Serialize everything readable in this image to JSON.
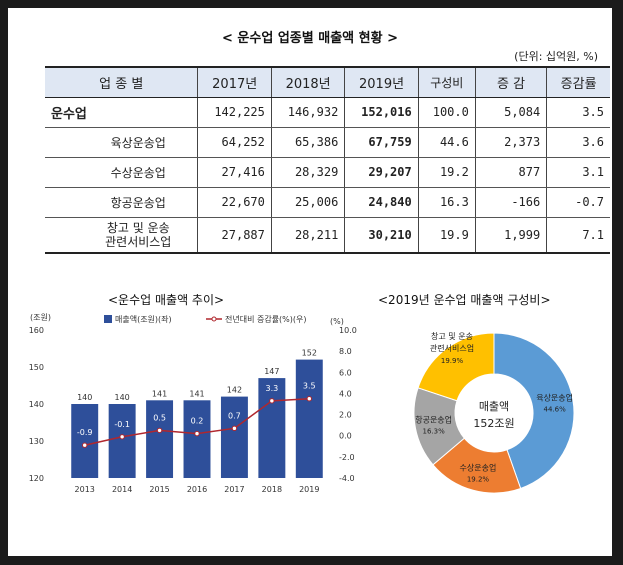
{
  "title": "< 운수업 업종별 매출액 현황 >",
  "unit": "(단위: 십억원, %)",
  "table": {
    "headers": [
      "업 종 별",
      "2017년",
      "2018년",
      "2019년",
      "구성비",
      "증 감",
      "증감률"
    ],
    "rows": [
      {
        "name": "운수업",
        "v2017": "142,225",
        "v2018": "146,932",
        "v2019": "152,016",
        "share": "100.0",
        "change": "5,084",
        "rate": "3.5"
      },
      {
        "name": "육상운송업",
        "v2017": "64,252",
        "v2018": "65,386",
        "v2019": "67,759",
        "share": "44.6",
        "change": "2,373",
        "rate": "3.6"
      },
      {
        "name": "수상운송업",
        "v2017": "27,416",
        "v2018": "28,329",
        "v2019": "29,207",
        "share": "19.2",
        "change": "877",
        "rate": "3.1"
      },
      {
        "name": "항공운송업",
        "v2017": "22,670",
        "v2018": "25,006",
        "v2019": "24,840",
        "share": "16.3",
        "change": "-166",
        "rate": "-0.7"
      },
      {
        "name": "창고 및 운송",
        "name2": "관련서비스업",
        "v2017": "27,887",
        "v2018": "28,211",
        "v2019": "30,210",
        "share": "19.9",
        "change": "1,999",
        "rate": "7.1"
      }
    ]
  },
  "chart_data": [
    {
      "type": "bar",
      "title": "<운수업 매출액 추이>",
      "left_unit": "(조원)",
      "right_unit": "(%)",
      "categories": [
        "2013",
        "2014",
        "2015",
        "2016",
        "2017",
        "2018",
        "2019"
      ],
      "series": [
        {
          "name": "매출액(조원)(좌)",
          "type": "bar",
          "values": [
            140,
            140,
            141,
            141,
            142,
            147,
            152
          ],
          "labels": [
            "140",
            "140",
            "141",
            "141",
            "142",
            "147",
            "152"
          ]
        },
        {
          "name": "전년대비 증감률(%)(우)",
          "type": "line",
          "values": [
            -0.9,
            -0.1,
            0.5,
            0.2,
            0.7,
            3.3,
            3.5
          ],
          "labels": [
            "-0.9",
            "-0.1",
            "0.5",
            "0.2",
            "0.7",
            "3.3",
            "3.5"
          ]
        }
      ],
      "yleft_ticks": [
        "160",
        "150",
        "140",
        "130",
        "120"
      ],
      "yleft_lim": [
        120,
        160
      ],
      "yright_ticks": [
        "10.0",
        "8.0",
        "6.0",
        "4.0",
        "2.0",
        "0.0",
        "-2.0",
        "-4.0"
      ],
      "yright_lim": [
        -4,
        10
      ],
      "colors": {
        "bar": "#2e4f9a",
        "line": "#b0272e"
      }
    },
    {
      "type": "pie",
      "title": "<2019년 운수업 매출액 구성비>",
      "center": [
        "매출액",
        "152조원"
      ],
      "slices": [
        {
          "name": "육상운송업",
          "value": 44.6,
          "label": "44.6%",
          "color": "#5b9bd5"
        },
        {
          "name": "수상운송업",
          "value": 19.2,
          "label": "19.2%",
          "color": "#ed7d31"
        },
        {
          "name": "항공운송업",
          "value": 16.3,
          "label": "16.3%",
          "color": "#a5a5a5"
        },
        {
          "name": "창고 및 운송",
          "name2": "관련서비스업",
          "value": 19.9,
          "label": "19.9%",
          "color": "#ffc000"
        }
      ]
    }
  ]
}
